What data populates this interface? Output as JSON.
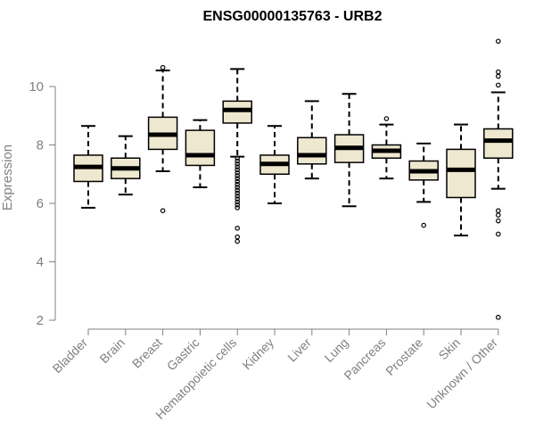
{
  "chart_data": {
    "type": "boxplot",
    "title": "ENSG00000135763 - URB2",
    "xlabel": "",
    "ylabel": "Expression",
    "ylim": [
      2,
      11.7
    ],
    "yticks": [
      "2",
      "4",
      "6",
      "8",
      "10"
    ],
    "grid": false,
    "box_color": "#efe8d0",
    "categories": [
      "Bladder",
      "Brain",
      "Breast",
      "Gastric",
      "Hematopoietic cells",
      "Kidney",
      "Liver",
      "Lung",
      "Pancreas",
      "Prostate",
      "Skin",
      "Unknown / Other"
    ],
    "boxes": [
      {
        "whislo": 5.85,
        "q1": 6.75,
        "med": 7.25,
        "q3": 7.65,
        "whishi": 8.65,
        "fliers": []
      },
      {
        "whislo": 6.3,
        "q1": 6.85,
        "med": 7.2,
        "q3": 7.55,
        "whishi": 8.3,
        "fliers": []
      },
      {
        "whislo": 7.1,
        "q1": 7.85,
        "med": 8.35,
        "q3": 8.95,
        "whishi": 10.55,
        "fliers": [
          5.75,
          10.65
        ]
      },
      {
        "whislo": 6.55,
        "q1": 7.3,
        "med": 7.65,
        "q3": 8.5,
        "whishi": 8.85,
        "fliers": []
      },
      {
        "whislo": 7.6,
        "q1": 8.75,
        "med": 9.2,
        "q3": 9.5,
        "whishi": 10.6,
        "fliers": [
          7.55,
          7.45,
          7.35,
          7.25,
          7.15,
          7.05,
          6.95,
          6.85,
          6.75,
          6.65,
          6.55,
          6.45,
          6.35,
          6.25,
          6.15,
          6.05,
          5.95,
          5.85,
          5.15,
          4.85,
          4.7
        ]
      },
      {
        "whislo": 6.0,
        "q1": 7.0,
        "med": 7.35,
        "q3": 7.65,
        "whishi": 8.65,
        "fliers": []
      },
      {
        "whislo": 6.85,
        "q1": 7.35,
        "med": 7.65,
        "q3": 8.25,
        "whishi": 9.5,
        "fliers": []
      },
      {
        "whislo": 5.9,
        "q1": 7.4,
        "med": 7.9,
        "q3": 8.35,
        "whishi": 9.75,
        "fliers": []
      },
      {
        "whislo": 6.85,
        "q1": 7.55,
        "med": 7.8,
        "q3": 8.0,
        "whishi": 8.7,
        "fliers": [
          8.9
        ]
      },
      {
        "whislo": 6.05,
        "q1": 6.8,
        "med": 7.1,
        "q3": 7.45,
        "whishi": 8.05,
        "fliers": [
          5.25
        ]
      },
      {
        "whislo": 4.9,
        "q1": 6.2,
        "med": 7.15,
        "q3": 7.85,
        "whishi": 8.7,
        "fliers": []
      },
      {
        "whislo": 6.5,
        "q1": 7.55,
        "med": 8.15,
        "q3": 8.55,
        "whishi": 9.8,
        "fliers": [
          5.75,
          5.6,
          5.4,
          4.95,
          10.05,
          10.35,
          10.5,
          11.55,
          2.1
        ]
      }
    ]
  }
}
